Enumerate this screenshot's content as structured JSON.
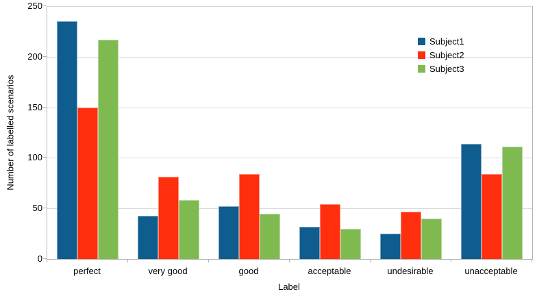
{
  "chart_data": {
    "type": "bar",
    "title": "",
    "xlabel": "Label",
    "ylabel": "Number of labelled scenarios",
    "categories": [
      "perfect",
      "very good",
      "good",
      "acceptable",
      "undesirable",
      "unacceptable"
    ],
    "series": [
      {
        "name": "Subject1",
        "color": "#0F5C8E",
        "border_color": "#7BA5C1",
        "values": [
          235,
          43,
          52,
          32,
          25,
          114
        ]
      },
      {
        "name": "Subject2",
        "color": "#FF2E0D",
        "border_color": "#FF8C7A",
        "values": [
          150,
          81,
          84,
          54,
          47,
          84
        ]
      },
      {
        "name": "Subject3",
        "color": "#7FBA51",
        "border_color": "#B7D9A0",
        "values": [
          217,
          58,
          45,
          30,
          40,
          111
        ]
      }
    ],
    "ylim": [
      0,
      250
    ],
    "yticks": [
      0,
      50,
      100,
      150,
      200,
      250
    ],
    "grid": true,
    "legend_position": "top-right"
  },
  "colors": {
    "background": "#FFFFFF",
    "grid": "#D9D9D9",
    "axis": "#B3B3B3",
    "text": "#000000"
  }
}
